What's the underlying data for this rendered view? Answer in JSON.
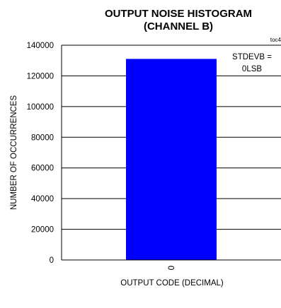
{
  "chart_data": {
    "type": "bar",
    "title": "OUTPUT NOISE HISTOGRAM",
    "subtitle": "(CHANNEL B)",
    "figure_id": "toc4",
    "xlabel": "OUTPUT CODE (DECIMAL)",
    "ylabel": "NUMBER OF OCCURRENCES",
    "categories": [
      "0"
    ],
    "values": [
      131072
    ],
    "ylim": [
      0,
      140000
    ],
    "yticks": [
      "0",
      "20000",
      "40000",
      "60000",
      "80000",
      "100000",
      "120000",
      "140000"
    ],
    "grid": true,
    "bar_color": "#0000FF",
    "annotation": {
      "line1": "STDEVB =",
      "line2": "0LSB"
    }
  }
}
